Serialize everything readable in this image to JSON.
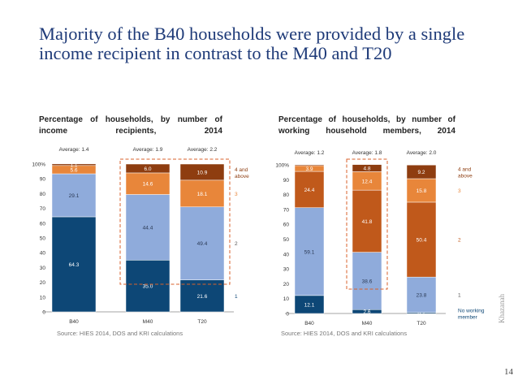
{
  "page": {
    "title": "Majority of the B40 households were provided by a single income recipient in contrast to the M40 and T20",
    "page_number": "14",
    "brand": "Khazanah"
  },
  "colors": {
    "c1": "#0d4776",
    "c2": "#8fabdb",
    "c3": "#e8863a",
    "c4": "#8e3d10",
    "c4b": "#c0591b",
    "dash": "#d9602b"
  },
  "chart_data": [
    {
      "type": "bar",
      "stacked": true,
      "title": "Percentage of households, by number of income recipients, 2014",
      "source": "Source: HIES 2014, DOS and KRI calculations",
      "categories": [
        "B40",
        "M40",
        "T20"
      ],
      "averages": [
        "Average: 1.4",
        "Average: 1.9",
        "Average: 2.2"
      ],
      "ylim": [
        0,
        100
      ],
      "yticks": [
        "0",
        "10",
        "20",
        "30",
        "40",
        "50",
        "60",
        "70",
        "80",
        "90",
        "100%"
      ],
      "highlighted": [
        "M40",
        "T20"
      ],
      "series": [
        {
          "name": "1",
          "color_key": "c1",
          "values": [
            64.3,
            35.0,
            21.6
          ],
          "labels": [
            "64.3",
            "35.0",
            "21.6"
          ]
        },
        {
          "name": "2",
          "color_key": "c2",
          "values": [
            29.1,
            44.4,
            49.4
          ],
          "labels": [
            "29.1",
            "44.4",
            "49.4"
          ]
        },
        {
          "name": "3",
          "color_key": "c3",
          "values": [
            5.6,
            14.6,
            18.1
          ],
          "labels": [
            "5.6",
            "14.6",
            "18.1"
          ]
        },
        {
          "name": "4 and above",
          "color_key": "c4",
          "values": [
            1.1,
            6.0,
            10.9
          ],
          "labels": [
            "1.1",
            "6.0",
            "10.9"
          ]
        }
      ]
    },
    {
      "type": "bar",
      "stacked": true,
      "title": "Percentage of households, by number of working household members, 2014",
      "source": "Source: HIES 2014, DOS and KRI calculations",
      "categories": [
        "B40",
        "M40",
        "T20"
      ],
      "averages": [
        "Average: 1.2",
        "Average: 1.8",
        "Average: 2.0"
      ],
      "ylim": [
        0,
        100
      ],
      "yticks": [
        "0",
        "10",
        "20",
        "30",
        "40",
        "50",
        "60",
        "70",
        "80",
        "90",
        "100%"
      ],
      "highlighted": [
        "M40"
      ],
      "series": [
        {
          "name": "No working member",
          "color_key": "c1",
          "values": [
            12.1,
            2.6,
            0.7
          ],
          "labels": [
            "12.1",
            "2.6",
            "0.7"
          ]
        },
        {
          "name": "1",
          "color_key": "c2",
          "values": [
            59.1,
            38.6,
            23.8
          ],
          "labels": [
            "59.1",
            "38.6",
            "23.8"
          ]
        },
        {
          "name": "2",
          "color_key": "c4b",
          "values": [
            24.4,
            41.8,
            50.4
          ],
          "labels": [
            "24.4",
            "41.8",
            "50.4"
          ]
        },
        {
          "name": "3",
          "color_key": "c3",
          "values": [
            3.9,
            12.4,
            15.8
          ],
          "labels": [
            "3.9",
            "12.4",
            "15.8"
          ]
        },
        {
          "name": "4 and above",
          "color_key": "c4",
          "values": [
            0.6,
            4.8,
            9.2
          ],
          "labels": [
            "",
            "4.8",
            "9.2"
          ]
        }
      ]
    }
  ]
}
